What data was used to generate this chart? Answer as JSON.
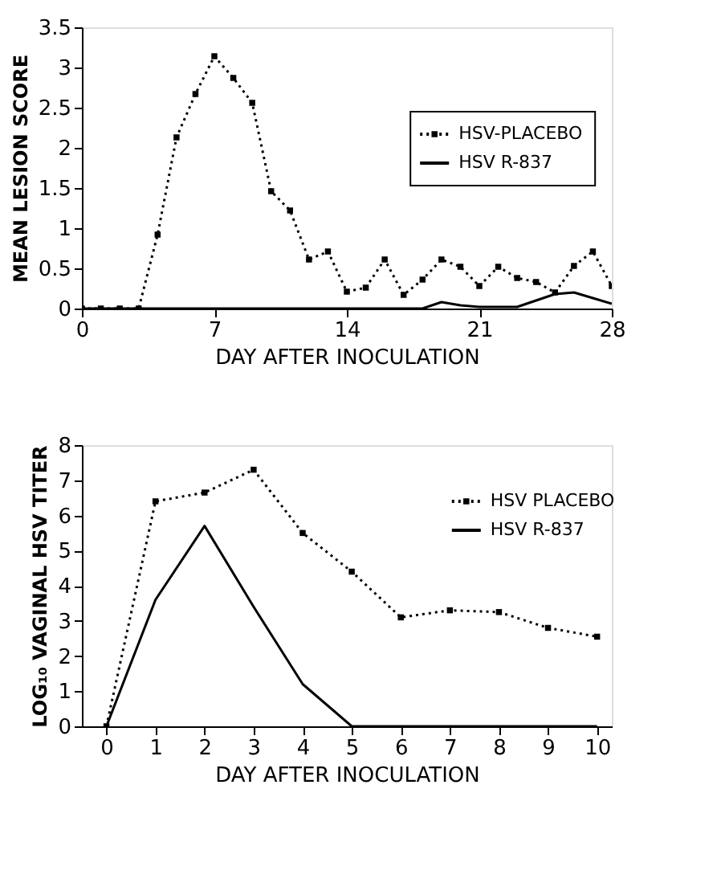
{
  "chart_data": [
    {
      "type": "line",
      "xlabel": "DAY AFTER INOCULATION",
      "ylabel": "MEAN LESION SCORE",
      "x": [
        0,
        1,
        2,
        3,
        4,
        5,
        6,
        7,
        8,
        9,
        10,
        11,
        12,
        13,
        14,
        15,
        16,
        17,
        18,
        19,
        20,
        21,
        22,
        23,
        24,
        25,
        26,
        27,
        28
      ],
      "xlim": [
        0,
        28
      ],
      "xticks": [
        0,
        7,
        14,
        21,
        28
      ],
      "ylim": [
        0,
        3.5
      ],
      "yticks": [
        0,
        0.5,
        1,
        1.5,
        2,
        2.5,
        3,
        3.5
      ],
      "legend": "right",
      "grid": false,
      "series": [
        {
          "name": "HSV-PLACEBO",
          "color": "#000000",
          "line_style": "dotted",
          "marker": "square",
          "values": [
            0,
            0,
            0,
            0,
            0.92,
            2.13,
            2.67,
            3.14,
            2.87,
            2.56,
            1.46,
            1.22,
            0.61,
            0.71,
            0.21,
            0.26,
            0.61,
            0.17,
            0.36,
            0.61,
            0.52,
            0.28,
            0.52,
            0.38,
            0.33,
            0.2,
            0.53,
            0.71,
            0.28
          ]
        },
        {
          "name": "HSV R-837",
          "color": "#000000",
          "line_style": "solid",
          "marker": "none",
          "values": [
            0,
            0,
            0,
            0,
            0,
            0,
            0,
            0,
            0,
            0,
            0,
            0,
            0,
            0,
            0,
            0,
            0,
            0,
            0,
            0.08,
            0.04,
            0.02,
            0.02,
            0.02,
            0.1,
            0.18,
            0.2,
            0.13,
            0.06
          ]
        }
      ]
    },
    {
      "type": "line",
      "xlabel": "DAY AFTER INOCULATION",
      "ylabel": "LOG₁₀ VAGINAL HSV TITER",
      "x": [
        0,
        1,
        2,
        3,
        4,
        5,
        6,
        7,
        8,
        9,
        10
      ],
      "xlim": [
        -0.5,
        10.3
      ],
      "xticks": [
        0,
        1,
        2,
        3,
        4,
        5,
        6,
        7,
        8,
        9,
        10
      ],
      "ylim": [
        0,
        8
      ],
      "yticks": [
        0,
        1,
        2,
        3,
        4,
        5,
        6,
        7,
        8
      ],
      "legend": "top right",
      "grid": false,
      "series": [
        {
          "name": "HSV PLACEBO",
          "color": "#000000",
          "line_style": "dotted",
          "marker": "square",
          "values": [
            0,
            6.4,
            6.65,
            7.3,
            5.5,
            4.4,
            3.1,
            3.3,
            3.25,
            2.8,
            2.55
          ]
        },
        {
          "name": "HSV R-837",
          "color": "#000000",
          "line_style": "solid",
          "marker": "none",
          "values": [
            0,
            3.6,
            5.7,
            3.4,
            1.2,
            0,
            0,
            0,
            0,
            0,
            0
          ]
        }
      ]
    }
  ]
}
